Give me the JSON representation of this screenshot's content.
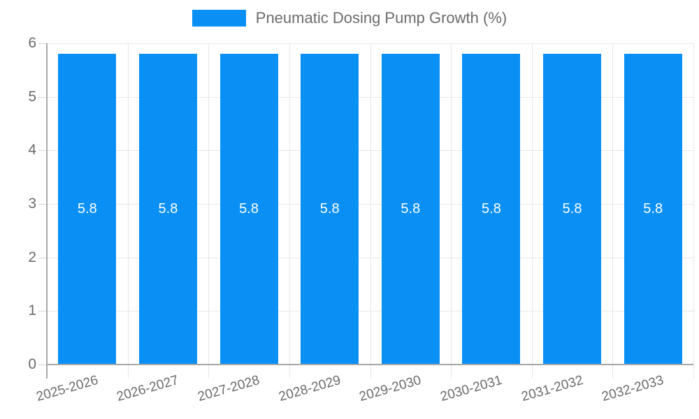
{
  "legend": {
    "label": "Pneumatic Dosing Pump Growth (%)",
    "color": "#0a90f5"
  },
  "chart_data": {
    "type": "bar",
    "title": "Pneumatic Dosing Pump Growth (%)",
    "categories": [
      "2025-2026",
      "2026-2027",
      "2027-2028",
      "2028-2029",
      "2029-2030",
      "2030-2031",
      "2031-2032",
      "2032-2033"
    ],
    "series": [
      {
        "name": "Pneumatic Dosing Pump Growth (%)",
        "values": [
          5.8,
          5.8,
          5.8,
          5.8,
          5.8,
          5.8,
          5.8,
          5.8
        ]
      }
    ],
    "bar_value_labels": [
      "5.8",
      "5.8",
      "5.8",
      "5.8",
      "5.8",
      "5.8",
      "5.8",
      "5.8"
    ],
    "ylim": [
      0,
      6
    ],
    "yticks": [
      0,
      1,
      2,
      3,
      4,
      5,
      6
    ],
    "ytick_labels": [
      "0",
      "1",
      "2",
      "3",
      "4",
      "5",
      "6"
    ],
    "xlabel": "",
    "ylabel": "",
    "grid": true,
    "legend_position": "top-center",
    "x_label_rotation_deg": -16,
    "colors": {
      "bar": "#0a90f5",
      "grid_line": "#e7e7e7",
      "axis_line": "#a8a8a8",
      "axis_text": "#6b6b6b",
      "bar_value_text": "#ffffff",
      "background": "#ffffff"
    }
  }
}
